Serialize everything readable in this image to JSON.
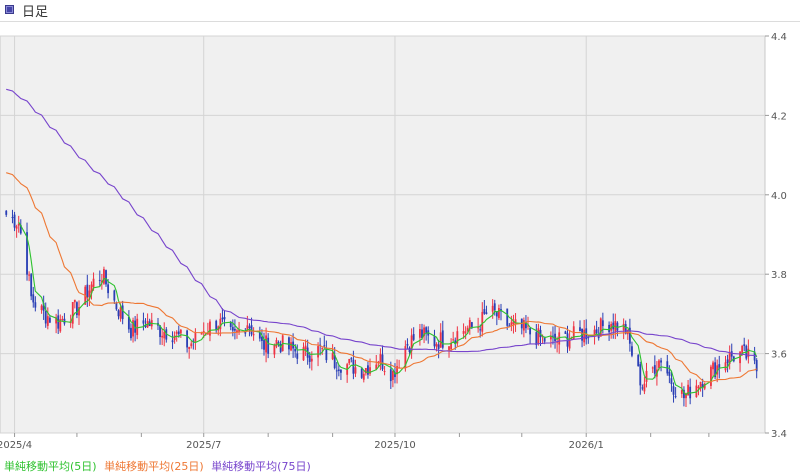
{
  "header": {
    "title": "日足",
    "icon": "chart-window-icon"
  },
  "legend": [
    {
      "label": "単純移動平均(5日)",
      "color": "#2ec22e"
    },
    {
      "label": "単純移動平均(25日)",
      "color": "#ee7733"
    },
    {
      "label": "単純移動平均(75日)",
      "color": "#7744cc"
    }
  ],
  "colors": {
    "up": "#ee3344",
    "down": "#2a3fb5",
    "plot_bg": "#f0f0f0",
    "grid": "#d4d4d4"
  },
  "chart_data": {
    "type": "candlestick",
    "title": "日足",
    "y_ticks": [
      "3.4",
      "3.6",
      "3.8",
      "4.0",
      "4.2",
      "4.4"
    ],
    "ylim": [
      3.4,
      4.4
    ],
    "x_labels": [
      "2025/4",
      "2025/7",
      "2025/10",
      "2026/1"
    ],
    "grid": true,
    "price_anchors": [
      [
        "2025/3/28",
        3.95
      ],
      [
        "2025/4/3",
        3.93
      ],
      [
        "2025/4/7",
        3.82
      ],
      [
        "2025/4/9",
        3.74
      ],
      [
        "2025/4/15",
        3.7
      ],
      [
        "2025/4/22",
        3.68
      ],
      [
        "2025/5/2",
        3.72
      ],
      [
        "2025/5/9",
        3.78
      ],
      [
        "2025/5/13",
        3.8
      ],
      [
        "2025/5/20",
        3.72
      ],
      [
        "2025/5/27",
        3.66
      ],
      [
        "2025/6/3",
        3.68
      ],
      [
        "2025/6/10",
        3.66
      ],
      [
        "2025/6/17",
        3.65
      ],
      [
        "2025/6/24",
        3.62
      ],
      [
        "2025/7/1",
        3.66
      ],
      [
        "2025/7/8",
        3.68
      ],
      [
        "2025/7/15",
        3.64
      ],
      [
        "2025/7/22",
        3.68
      ],
      [
        "2025/7/29",
        3.62
      ],
      [
        "2025/8/5",
        3.63
      ],
      [
        "2025/8/12",
        3.61
      ],
      [
        "2025/8/19",
        3.6
      ],
      [
        "2025/8/26",
        3.61
      ],
      [
        "2025/9/2",
        3.58
      ],
      [
        "2025/9/9",
        3.57
      ],
      [
        "2025/9/16",
        3.56
      ],
      [
        "2025/9/23",
        3.59
      ],
      [
        "2025/9/30",
        3.55
      ],
      [
        "2025/10/6",
        3.62
      ],
      [
        "2025/10/13",
        3.65
      ],
      [
        "2025/10/20",
        3.63
      ],
      [
        "2025/10/27",
        3.64
      ],
      [
        "2025/11/3",
        3.66
      ],
      [
        "2025/11/10",
        3.67
      ],
      [
        "2025/11/14",
        3.7
      ],
      [
        "2025/11/18",
        3.7
      ],
      [
        "2025/11/25",
        3.67
      ],
      [
        "2025/12/2",
        3.66
      ],
      [
        "2025/12/9",
        3.64
      ],
      [
        "2025/12/16",
        3.63
      ],
      [
        "2025/12/23",
        3.64
      ],
      [
        "2025/12/30",
        3.65
      ],
      [
        "2026/1/6",
        3.66
      ],
      [
        "2026/1/13",
        3.68
      ],
      [
        "2026/1/20",
        3.66
      ],
      [
        "2026/1/23",
        3.6
      ],
      [
        "2026/1/28",
        3.52
      ],
      [
        "2026/2/3",
        3.57
      ],
      [
        "2026/2/6",
        3.59
      ],
      [
        "2026/2/12",
        3.52
      ],
      [
        "2026/2/17",
        3.49
      ],
      [
        "2026/2/24",
        3.53
      ],
      [
        "2026/3/3",
        3.56
      ],
      [
        "2026/3/10",
        3.59
      ],
      [
        "2026/3/17",
        3.6
      ],
      [
        "2026/3/20",
        3.59
      ],
      [
        "2026/3/24",
        3.56
      ]
    ],
    "series": [
      {
        "name": "単純移動平均(5日)",
        "window": 5
      },
      {
        "name": "単純移動平均(25日)",
        "window": 25,
        "start": 4.06
      },
      {
        "name": "単純移動平均(75日)",
        "window": 75,
        "start": 4.27
      }
    ]
  }
}
